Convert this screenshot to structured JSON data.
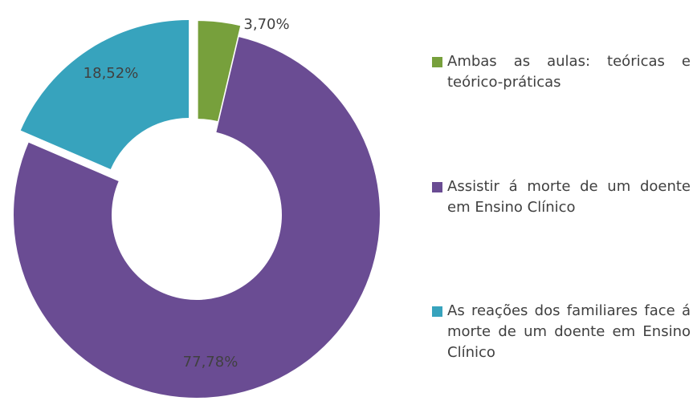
{
  "chart_data": {
    "type": "donut",
    "categories": [
      "Ambas as aulas: teóricas e teórico-práticas",
      "Assistir á morte de um doente em Ensino Clínico",
      "As reações dos familiares face á morte de um doente em Ensino Clínico"
    ],
    "values": [
      3.7,
      77.78,
      18.52
    ],
    "value_labels": [
      "3,70%",
      "77,78%",
      "18,52%"
    ],
    "colors": [
      "#77a03c",
      "#6a4c93",
      "#37a3bd"
    ],
    "legend": "right"
  }
}
